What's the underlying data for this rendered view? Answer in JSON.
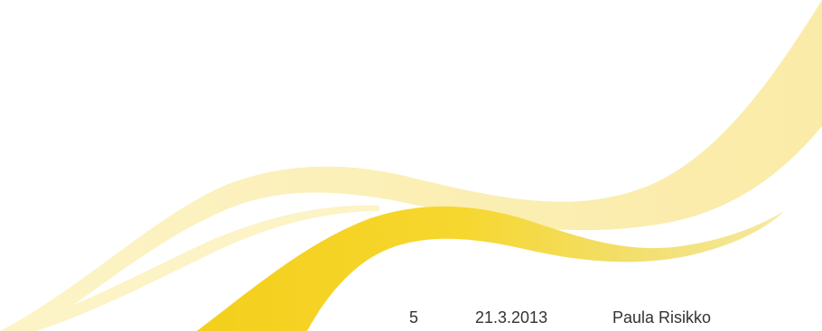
{
  "footer": {
    "page_number": "5",
    "date": "21.3.2013",
    "author": "Paula Risikko"
  },
  "colors": {
    "background": "#ffffff",
    "wave_light": "#fbefb5",
    "wave_pale": "#fcf3c6",
    "wave_gold": "#f6d224",
    "wave_gold_light": "#f2df6e",
    "footer_text": "#333333"
  }
}
